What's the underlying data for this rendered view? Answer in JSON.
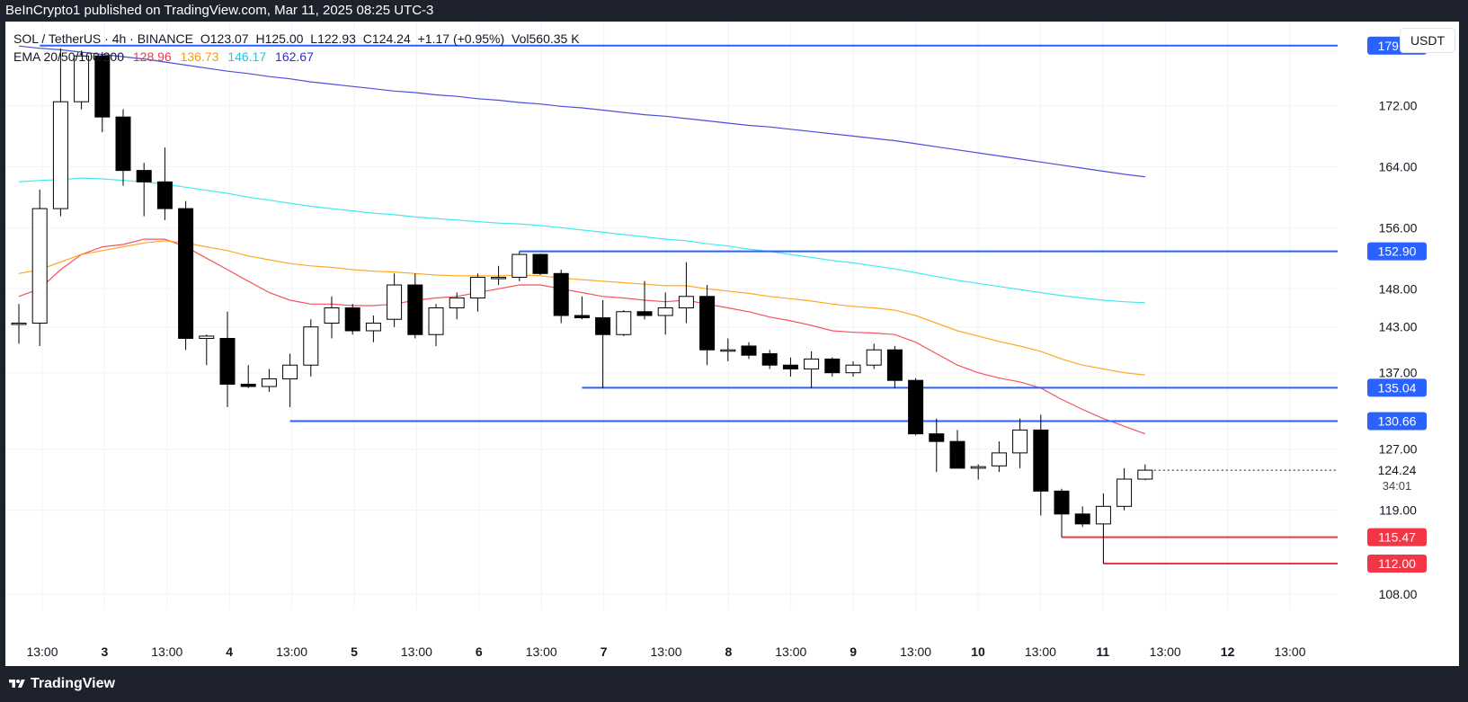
{
  "header": {
    "publisher_line": "BeInCrypto1 published on TradingView.com, Mar 11, 2025 08:25 UTC-3"
  },
  "legend": {
    "symbol": "SOL / TetherUS · 4h · BINANCE",
    "open": "O123.07",
    "high": "H125.00",
    "low": "L122.93",
    "close": "C124.24",
    "change": "+1.17 (+0.95%)",
    "volume": "Vol560.35 K",
    "ema_label": "EMA 20/50/100/200",
    "ema_values": [
      "128.96",
      "136.73",
      "146.17",
      "162.67"
    ]
  },
  "currency_button": "USDT",
  "footer": {
    "brand": "TradingView"
  },
  "colors": {
    "ema20": "#f23645",
    "ema50": "#ff9800",
    "ema100": "#22e5f0",
    "ema200": "#2e2ed8",
    "support_resistance_blue": "#2962ff",
    "support_red": "#f23645",
    "background_dark": "#1e222d"
  },
  "chart_data": {
    "type": "candlestick",
    "title": "",
    "xlabel": "",
    "ylabel": "",
    "ylim": [
      106,
      183
    ],
    "x_tick_labels": [
      "13:00",
      "3",
      "13:00",
      "4",
      "13:00",
      "5",
      "13:00",
      "6",
      "13:00",
      "7",
      "13:00",
      "8",
      "13:00",
      "9",
      "13:00",
      "10",
      "13:00",
      "11",
      "13:00",
      "12",
      "13:00"
    ],
    "y_tick_labels": [
      "172.00",
      "164.00",
      "156.00",
      "148.00",
      "143.00",
      "137.00",
      "127.00",
      "119.00",
      "108.00"
    ],
    "y_ticks": [
      172,
      164,
      156,
      148,
      143,
      137,
      127,
      119,
      108
    ],
    "candles": [
      {
        "o": 143.5,
        "h": 146.0,
        "l": 140.8,
        "c": 143.5
      },
      {
        "o": 143.5,
        "h": 161.0,
        "l": 140.5,
        "c": 158.5
      },
      {
        "o": 158.5,
        "h": 179.5,
        "l": 157.5,
        "c": 172.5
      },
      {
        "o": 172.5,
        "h": 179.2,
        "l": 171.5,
        "c": 178.5
      },
      {
        "o": 178.5,
        "h": 178.8,
        "l": 168.5,
        "c": 170.5
      },
      {
        "o": 170.5,
        "h": 171.5,
        "l": 161.5,
        "c": 163.5
      },
      {
        "o": 163.5,
        "h": 164.5,
        "l": 157.5,
        "c": 162.0
      },
      {
        "o": 162.0,
        "h": 166.5,
        "l": 157.0,
        "c": 158.5
      },
      {
        "o": 158.5,
        "h": 159.5,
        "l": 140.0,
        "c": 141.5
      },
      {
        "o": 141.5,
        "h": 142.0,
        "l": 138.0,
        "c": 141.8
      },
      {
        "o": 141.5,
        "h": 145.0,
        "l": 132.5,
        "c": 135.5
      },
      {
        "o": 135.5,
        "h": 138.0,
        "l": 135.0,
        "c": 135.2
      },
      {
        "o": 135.2,
        "h": 137.5,
        "l": 134.5,
        "c": 136.2
      },
      {
        "o": 136.2,
        "h": 139.5,
        "l": 132.5,
        "c": 138.0
      },
      {
        "o": 138.0,
        "h": 144.0,
        "l": 136.5,
        "c": 143.0
      },
      {
        "o": 143.5,
        "h": 147.0,
        "l": 141.5,
        "c": 145.5
      },
      {
        "o": 145.5,
        "h": 146.0,
        "l": 142.0,
        "c": 142.5
      },
      {
        "o": 142.5,
        "h": 144.5,
        "l": 141.0,
        "c": 143.5
      },
      {
        "o": 144.0,
        "h": 150.0,
        "l": 143.0,
        "c": 148.5
      },
      {
        "o": 148.5,
        "h": 150.0,
        "l": 141.5,
        "c": 142.0
      },
      {
        "o": 142.0,
        "h": 146.0,
        "l": 140.5,
        "c": 145.5
      },
      {
        "o": 145.5,
        "h": 147.5,
        "l": 144.0,
        "c": 146.8
      },
      {
        "o": 146.8,
        "h": 150.0,
        "l": 145.0,
        "c": 149.5
      },
      {
        "o": 149.5,
        "h": 151.0,
        "l": 148.5,
        "c": 149.5
      },
      {
        "o": 149.5,
        "h": 152.9,
        "l": 149.0,
        "c": 152.5
      },
      {
        "o": 152.5,
        "h": 152.6,
        "l": 149.8,
        "c": 150.0
      },
      {
        "o": 150.0,
        "h": 150.5,
        "l": 143.5,
        "c": 144.5
      },
      {
        "o": 144.5,
        "h": 147.0,
        "l": 144.0,
        "c": 144.2
      },
      {
        "o": 144.2,
        "h": 146.5,
        "l": 135.0,
        "c": 142.0
      },
      {
        "o": 142.0,
        "h": 145.2,
        "l": 141.8,
        "c": 145.0
      },
      {
        "o": 145.0,
        "h": 149.0,
        "l": 144.0,
        "c": 144.5
      },
      {
        "o": 144.5,
        "h": 147.5,
        "l": 142.0,
        "c": 145.5
      },
      {
        "o": 145.5,
        "h": 151.5,
        "l": 143.5,
        "c": 147.0
      },
      {
        "o": 147.0,
        "h": 148.5,
        "l": 138.0,
        "c": 140.0
      },
      {
        "o": 140.0,
        "h": 141.5,
        "l": 138.5,
        "c": 140.0
      },
      {
        "o": 140.5,
        "h": 141.0,
        "l": 138.8,
        "c": 139.3
      },
      {
        "o": 139.5,
        "h": 140.0,
        "l": 137.5,
        "c": 138.0
      },
      {
        "o": 138.0,
        "h": 139.0,
        "l": 136.5,
        "c": 137.5
      },
      {
        "o": 137.5,
        "h": 139.8,
        "l": 135.0,
        "c": 138.8
      },
      {
        "o": 138.8,
        "h": 139.0,
        "l": 136.5,
        "c": 137.0
      },
      {
        "o": 137.0,
        "h": 138.5,
        "l": 136.5,
        "c": 138.0
      },
      {
        "o": 138.0,
        "h": 140.8,
        "l": 137.5,
        "c": 140.0
      },
      {
        "o": 140.0,
        "h": 140.5,
        "l": 135.0,
        "c": 136.0
      },
      {
        "o": 136.0,
        "h": 136.3,
        "l": 128.8,
        "c": 129.0
      },
      {
        "o": 129.0,
        "h": 131.0,
        "l": 124.0,
        "c": 128.0
      },
      {
        "o": 128.0,
        "h": 129.5,
        "l": 124.5,
        "c": 124.5
      },
      {
        "o": 124.5,
        "h": 125.0,
        "l": 123.0,
        "c": 124.7
      },
      {
        "o": 124.8,
        "h": 128.0,
        "l": 124.0,
        "c": 126.5
      },
      {
        "o": 126.5,
        "h": 131.0,
        "l": 124.5,
        "c": 129.5
      },
      {
        "o": 129.5,
        "h": 131.5,
        "l": 118.3,
        "c": 121.5
      },
      {
        "o": 121.5,
        "h": 121.8,
        "l": 115.47,
        "c": 118.5
      },
      {
        "o": 118.5,
        "h": 119.5,
        "l": 116.8,
        "c": 117.2
      },
      {
        "o": 117.2,
        "h": 121.2,
        "l": 112.0,
        "c": 119.5
      },
      {
        "o": 119.5,
        "h": 124.5,
        "l": 119.0,
        "c": 123.07
      },
      {
        "o": 123.07,
        "h": 125.0,
        "l": 122.93,
        "c": 124.24
      }
    ],
    "ema_series": [
      {
        "name": "EMA 20",
        "values": [
          147.0,
          148.0,
          150.5,
          152.5,
          153.5,
          153.8,
          154.5,
          154.5,
          153.5,
          152.0,
          150.5,
          149.0,
          147.5,
          146.5,
          146.0,
          146.0,
          145.8,
          145.8,
          146.0,
          146.5,
          146.8,
          147.0,
          147.5,
          148.0,
          148.5,
          148.5,
          148.0,
          147.5,
          147.0,
          146.8,
          146.5,
          146.3,
          146.5,
          146.0,
          145.5,
          145.0,
          144.3,
          143.8,
          143.2,
          142.5,
          142.3,
          142.2,
          142.0,
          141.0,
          139.5,
          138.0,
          137.0,
          136.3,
          135.8,
          135.0,
          133.5,
          132.2,
          131.0,
          130.0,
          129.0
        ]
      },
      {
        "name": "EMA 50",
        "values": [
          150.0,
          150.5,
          151.5,
          152.5,
          153.0,
          153.5,
          154.0,
          154.3,
          154.0,
          153.5,
          153.0,
          152.3,
          151.8,
          151.3,
          151.0,
          150.8,
          150.5,
          150.3,
          150.2,
          150.0,
          149.8,
          149.7,
          149.7,
          149.7,
          149.8,
          149.7,
          149.4,
          149.2,
          149.0,
          148.8,
          148.6,
          148.4,
          148.4,
          148.0,
          147.7,
          147.4,
          147.0,
          146.7,
          146.4,
          146.0,
          145.7,
          145.5,
          145.2,
          144.5,
          143.5,
          142.5,
          141.8,
          141.1,
          140.5,
          139.8,
          138.8,
          138.0,
          137.5,
          137.0,
          136.7
        ]
      },
      {
        "name": "EMA 100",
        "values": [
          162.0,
          162.2,
          162.3,
          162.5,
          162.4,
          162.2,
          162.0,
          161.7,
          161.3,
          160.9,
          160.5,
          160.0,
          159.6,
          159.2,
          158.8,
          158.5,
          158.2,
          157.9,
          157.7,
          157.4,
          157.2,
          157.0,
          156.8,
          156.6,
          156.5,
          156.3,
          156.0,
          155.7,
          155.4,
          155.1,
          154.8,
          154.5,
          154.3,
          153.9,
          153.6,
          153.2,
          152.9,
          152.5,
          152.1,
          151.7,
          151.4,
          151.0,
          150.6,
          150.1,
          149.6,
          149.1,
          148.7,
          148.3,
          147.9,
          147.5,
          147.1,
          146.8,
          146.5,
          146.3,
          146.17
        ]
      },
      {
        "name": "EMA 200",
        "values": [
          179.8,
          179.5,
          179.3,
          179.0,
          178.7,
          178.4,
          178.1,
          177.7,
          177.3,
          176.9,
          176.5,
          176.2,
          175.8,
          175.5,
          175.1,
          174.8,
          174.5,
          174.2,
          173.9,
          173.7,
          173.4,
          173.2,
          172.9,
          172.7,
          172.4,
          172.2,
          171.9,
          171.7,
          171.4,
          171.1,
          170.8,
          170.6,
          170.3,
          170.0,
          169.7,
          169.4,
          169.2,
          168.9,
          168.6,
          168.3,
          168.0,
          167.7,
          167.4,
          167.0,
          166.6,
          166.2,
          165.8,
          165.4,
          165.0,
          164.6,
          164.2,
          163.8,
          163.4,
          163.0,
          162.67
        ]
      }
    ],
    "levels": [
      {
        "value": 179.85,
        "label": "179.85",
        "color": "blue",
        "start_candle": 1
      },
      {
        "value": 152.9,
        "label": "152.90",
        "color": "blue",
        "start_candle": 24
      },
      {
        "value": 135.04,
        "label": "135.04",
        "color": "blue",
        "start_candle": 27
      },
      {
        "value": 130.66,
        "label": "130.66",
        "color": "blue",
        "start_candle": 13
      },
      {
        "value": 115.47,
        "label": "115.47",
        "color": "red",
        "start_candle": 50
      },
      {
        "value": 112.0,
        "label": "112.00",
        "color": "red",
        "start_candle": 52
      }
    ],
    "last_price": {
      "label": "124.24",
      "countdown": "34:01"
    },
    "grid": true
  }
}
